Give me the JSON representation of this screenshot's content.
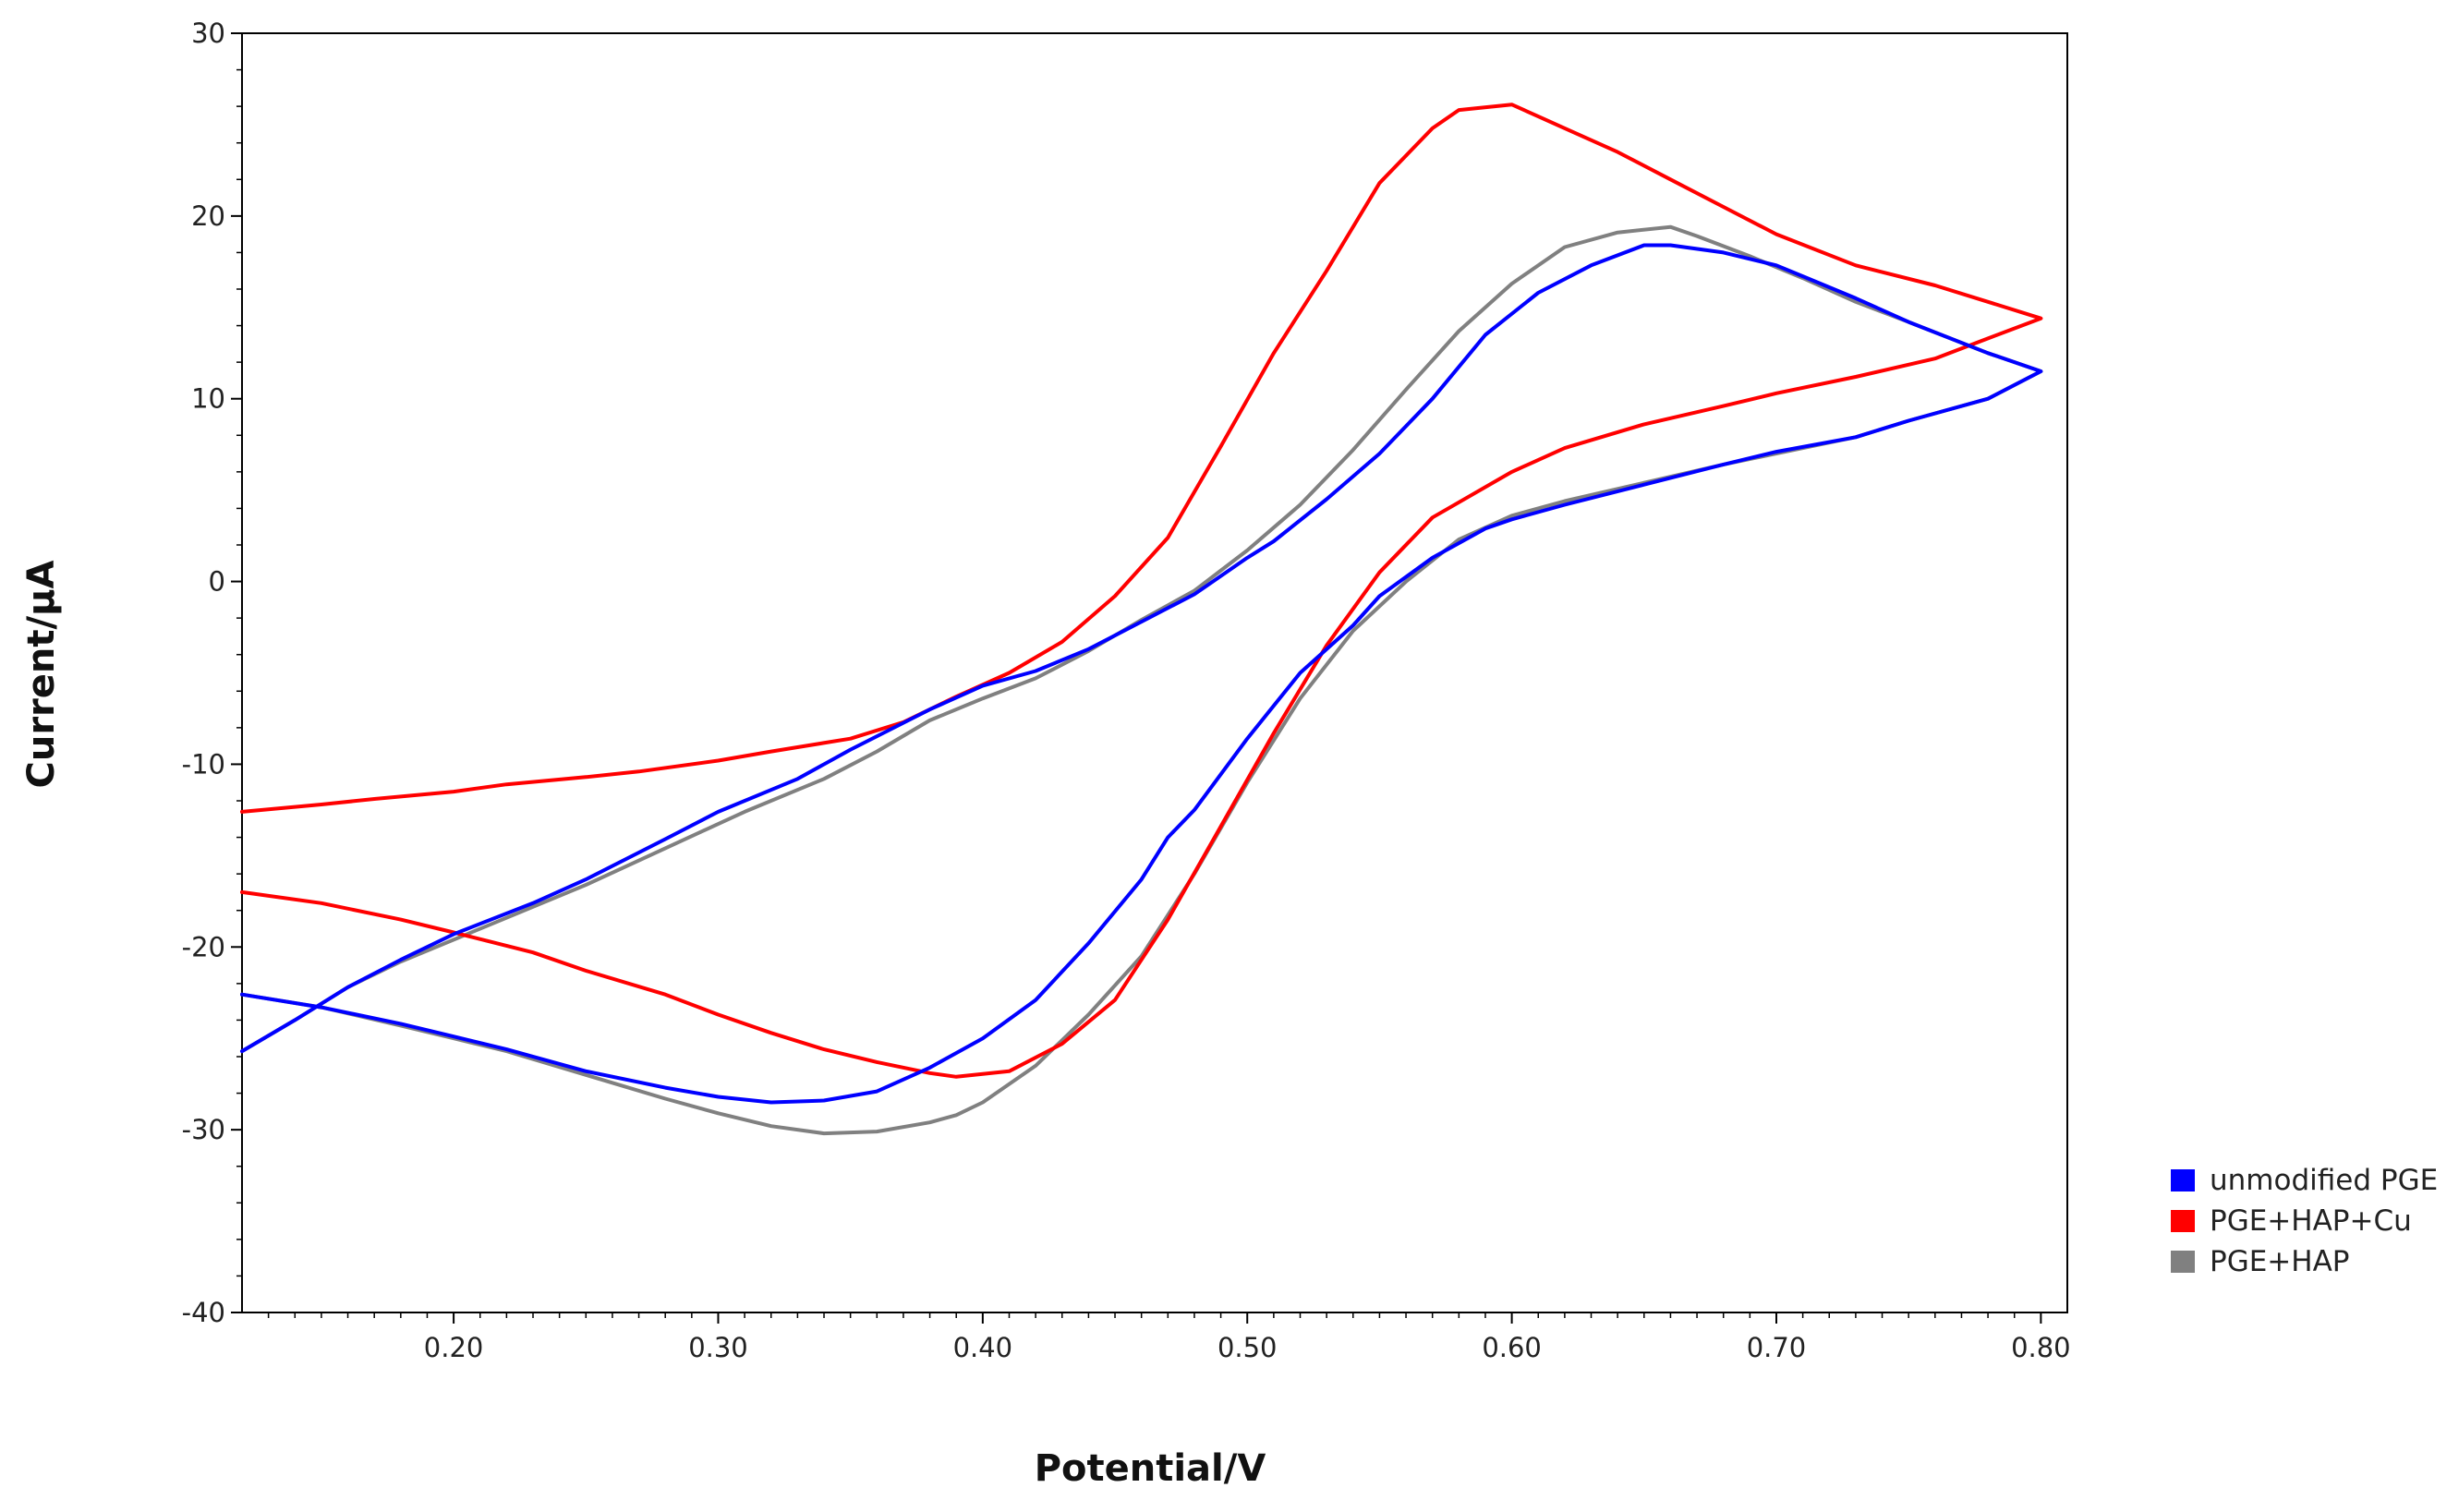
{
  "chart_data": {
    "type": "line",
    "title": "",
    "xlabel": "Potential/V",
    "ylabel": "Current/µA",
    "xlim": [
      0.12,
      0.81
    ],
    "ylim": [
      -40,
      30
    ],
    "xticks": [
      0.2,
      0.3,
      0.4,
      0.5,
      0.6,
      0.7,
      0.8
    ],
    "xtick_labels": [
      "0.20",
      "0.30",
      "0.40",
      "0.50",
      "0.60",
      "0.70",
      "0.80"
    ],
    "yticks": [
      30,
      20,
      10,
      0,
      -10,
      -20,
      -30,
      -40
    ],
    "ytick_labels": [
      "30",
      "20",
      "10",
      "0",
      "-10",
      "-20",
      "-30",
      "-40"
    ],
    "grid": false,
    "legend_position": "bottom-right outside",
    "series": [
      {
        "name": "unmodified PGE",
        "color": "#0000ff",
        "points": [
          [
            0.12,
            -22.6
          ],
          [
            0.15,
            -23.3
          ],
          [
            0.18,
            -24.2
          ],
          [
            0.2,
            -24.9
          ],
          [
            0.22,
            -25.6
          ],
          [
            0.25,
            -26.8
          ],
          [
            0.28,
            -27.7
          ],
          [
            0.3,
            -28.2
          ],
          [
            0.32,
            -28.5
          ],
          [
            0.34,
            -28.4
          ],
          [
            0.36,
            -27.9
          ],
          [
            0.38,
            -26.6
          ],
          [
            0.4,
            -25.0
          ],
          [
            0.42,
            -22.9
          ],
          [
            0.44,
            -19.8
          ],
          [
            0.46,
            -16.3
          ],
          [
            0.47,
            -14.0
          ],
          [
            0.48,
            -12.5
          ],
          [
            0.5,
            -8.6
          ],
          [
            0.52,
            -5.0
          ],
          [
            0.54,
            -2.4
          ],
          [
            0.55,
            -0.8
          ],
          [
            0.57,
            1.3
          ],
          [
            0.59,
            2.9
          ],
          [
            0.6,
            3.4
          ],
          [
            0.62,
            4.2
          ],
          [
            0.65,
            5.3
          ],
          [
            0.68,
            6.4
          ],
          [
            0.7,
            7.1
          ],
          [
            0.73,
            7.9
          ],
          [
            0.75,
            8.8
          ],
          [
            0.78,
            10.0
          ],
          [
            0.8,
            11.5
          ],
          [
            0.78,
            12.5
          ],
          [
            0.75,
            14.2
          ],
          [
            0.73,
            15.5
          ],
          [
            0.71,
            16.7
          ],
          [
            0.7,
            17.3
          ],
          [
            0.68,
            18.0
          ],
          [
            0.66,
            18.4
          ],
          [
            0.65,
            18.4
          ],
          [
            0.63,
            17.3
          ],
          [
            0.61,
            15.8
          ],
          [
            0.59,
            13.5
          ],
          [
            0.57,
            10.0
          ],
          [
            0.55,
            7.0
          ],
          [
            0.53,
            4.5
          ],
          [
            0.51,
            2.2
          ],
          [
            0.5,
            1.3
          ],
          [
            0.48,
            -0.7
          ],
          [
            0.46,
            -2.2
          ],
          [
            0.44,
            -3.7
          ],
          [
            0.42,
            -4.9
          ],
          [
            0.4,
            -5.7
          ],
          [
            0.38,
            -7.0
          ],
          [
            0.35,
            -9.2
          ],
          [
            0.33,
            -10.8
          ],
          [
            0.3,
            -12.6
          ],
          [
            0.28,
            -14.1
          ],
          [
            0.25,
            -16.3
          ],
          [
            0.23,
            -17.6
          ],
          [
            0.2,
            -19.3
          ],
          [
            0.18,
            -20.7
          ],
          [
            0.16,
            -22.2
          ],
          [
            0.14,
            -24.0
          ],
          [
            0.12,
            -25.7
          ]
        ]
      },
      {
        "name": "PGE+HAP+Cu",
        "color": "#ff0000",
        "points": [
          [
            0.12,
            -17.0
          ],
          [
            0.15,
            -17.6
          ],
          [
            0.18,
            -18.5
          ],
          [
            0.2,
            -19.2
          ],
          [
            0.23,
            -20.3
          ],
          [
            0.25,
            -21.3
          ],
          [
            0.28,
            -22.6
          ],
          [
            0.3,
            -23.7
          ],
          [
            0.32,
            -24.7
          ],
          [
            0.34,
            -25.6
          ],
          [
            0.36,
            -26.3
          ],
          [
            0.38,
            -26.9
          ],
          [
            0.39,
            -27.1
          ],
          [
            0.41,
            -26.8
          ],
          [
            0.43,
            -25.3
          ],
          [
            0.45,
            -22.9
          ],
          [
            0.47,
            -18.5
          ],
          [
            0.49,
            -13.4
          ],
          [
            0.51,
            -8.3
          ],
          [
            0.53,
            -3.5
          ],
          [
            0.55,
            0.5
          ],
          [
            0.57,
            3.5
          ],
          [
            0.6,
            6.0
          ],
          [
            0.62,
            7.3
          ],
          [
            0.65,
            8.6
          ],
          [
            0.68,
            9.6
          ],
          [
            0.7,
            10.3
          ],
          [
            0.73,
            11.2
          ],
          [
            0.76,
            12.2
          ],
          [
            0.78,
            13.3
          ],
          [
            0.8,
            14.4
          ],
          [
            0.78,
            15.3
          ],
          [
            0.76,
            16.2
          ],
          [
            0.73,
            17.3
          ],
          [
            0.7,
            19.0
          ],
          [
            0.68,
            20.5
          ],
          [
            0.66,
            22.0
          ],
          [
            0.64,
            23.5
          ],
          [
            0.62,
            24.8
          ],
          [
            0.6,
            26.1
          ],
          [
            0.58,
            25.8
          ],
          [
            0.57,
            24.8
          ],
          [
            0.55,
            21.8
          ],
          [
            0.53,
            17.0
          ],
          [
            0.51,
            12.5
          ],
          [
            0.49,
            7.4
          ],
          [
            0.47,
            2.4
          ],
          [
            0.45,
            -0.8
          ],
          [
            0.43,
            -3.3
          ],
          [
            0.41,
            -5.0
          ],
          [
            0.39,
            -6.3
          ],
          [
            0.37,
            -7.7
          ],
          [
            0.35,
            -8.6
          ],
          [
            0.32,
            -9.3
          ],
          [
            0.3,
            -9.8
          ],
          [
            0.27,
            -10.4
          ],
          [
            0.25,
            -10.7
          ],
          [
            0.22,
            -11.1
          ],
          [
            0.2,
            -11.5
          ],
          [
            0.17,
            -11.9
          ],
          [
            0.15,
            -12.2
          ],
          [
            0.12,
            -12.6
          ]
        ]
      },
      {
        "name": "PGE+HAP",
        "color": "#808080",
        "points": [
          [
            0.12,
            -22.6
          ],
          [
            0.15,
            -23.3
          ],
          [
            0.18,
            -24.3
          ],
          [
            0.2,
            -25.0
          ],
          [
            0.22,
            -25.7
          ],
          [
            0.25,
            -27.0
          ],
          [
            0.28,
            -28.3
          ],
          [
            0.3,
            -29.1
          ],
          [
            0.32,
            -29.8
          ],
          [
            0.34,
            -30.2
          ],
          [
            0.36,
            -30.1
          ],
          [
            0.38,
            -29.6
          ],
          [
            0.39,
            -29.2
          ],
          [
            0.4,
            -28.5
          ],
          [
            0.42,
            -26.5
          ],
          [
            0.44,
            -23.7
          ],
          [
            0.46,
            -20.5
          ],
          [
            0.48,
            -16.0
          ],
          [
            0.5,
            -11.0
          ],
          [
            0.52,
            -6.4
          ],
          [
            0.54,
            -2.7
          ],
          [
            0.56,
            0.0
          ],
          [
            0.58,
            2.3
          ],
          [
            0.6,
            3.6
          ],
          [
            0.62,
            4.4
          ],
          [
            0.65,
            5.4
          ],
          [
            0.68,
            6.4
          ],
          [
            0.7,
            7.0
          ],
          [
            0.73,
            7.9
          ],
          [
            0.75,
            8.8
          ],
          [
            0.78,
            10.0
          ],
          [
            0.8,
            11.5
          ],
          [
            0.78,
            12.5
          ],
          [
            0.75,
            14.2
          ],
          [
            0.73,
            15.3
          ],
          [
            0.71,
            16.6
          ],
          [
            0.69,
            17.8
          ],
          [
            0.67,
            18.9
          ],
          [
            0.66,
            19.4
          ],
          [
            0.64,
            19.1
          ],
          [
            0.62,
            18.3
          ],
          [
            0.6,
            16.3
          ],
          [
            0.58,
            13.7
          ],
          [
            0.56,
            10.5
          ],
          [
            0.54,
            7.2
          ],
          [
            0.52,
            4.2
          ],
          [
            0.5,
            1.7
          ],
          [
            0.48,
            -0.5
          ],
          [
            0.46,
            -2.1
          ],
          [
            0.44,
            -3.8
          ],
          [
            0.42,
            -5.3
          ],
          [
            0.4,
            -6.4
          ],
          [
            0.38,
            -7.6
          ],
          [
            0.36,
            -9.3
          ],
          [
            0.34,
            -10.8
          ],
          [
            0.31,
            -12.6
          ],
          [
            0.28,
            -14.6
          ],
          [
            0.25,
            -16.6
          ],
          [
            0.23,
            -17.8
          ],
          [
            0.2,
            -19.6
          ],
          [
            0.18,
            -20.8
          ],
          [
            0.16,
            -22.2
          ],
          [
            0.14,
            -24.0
          ],
          [
            0.12,
            -25.7
          ]
        ]
      }
    ]
  }
}
